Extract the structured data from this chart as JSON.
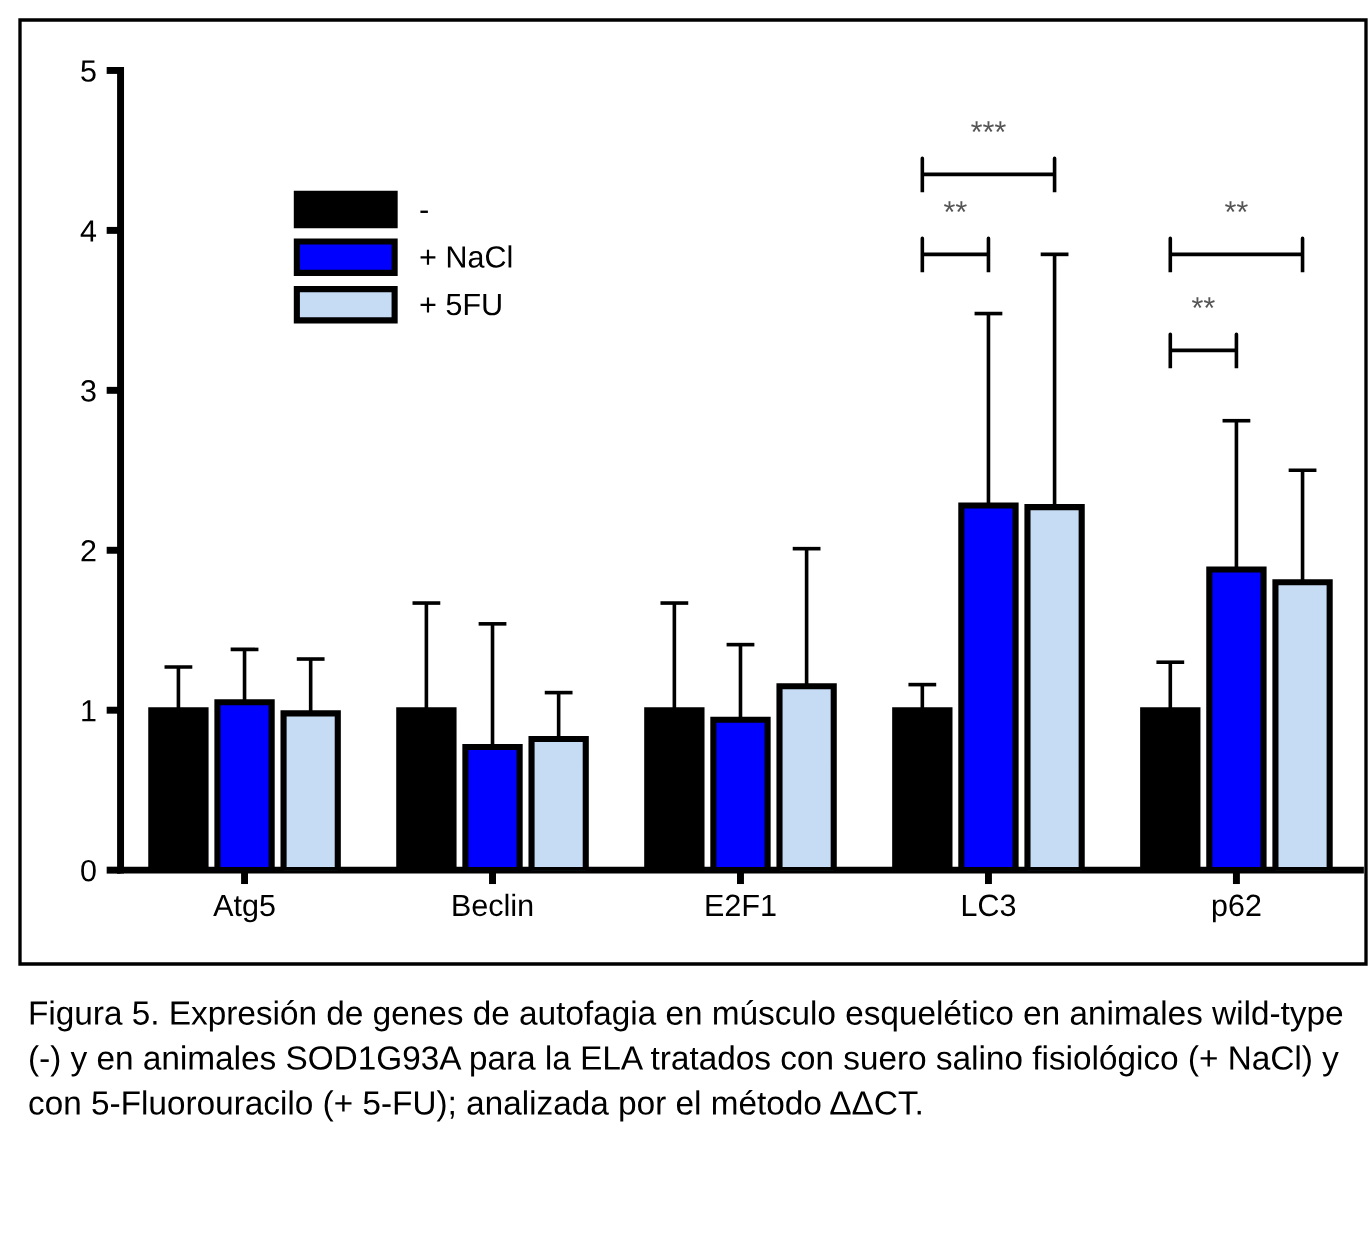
{
  "chart_data": {
    "type": "bar",
    "categories": [
      "Atg5",
      "Beclin",
      "E2F1",
      "LC3",
      "p62"
    ],
    "series": [
      {
        "name": "-",
        "color": "#000000",
        "values": [
          1.0,
          1.0,
          1.0,
          1.0,
          1.0
        ],
        "errors": [
          [
            1.0,
            1.27
          ],
          [
            1.0,
            1.67
          ],
          [
            1.0,
            1.67
          ],
          [
            1.0,
            1.16
          ],
          [
            1.0,
            1.3
          ]
        ]
      },
      {
        "name": "+ NaCl",
        "color": "#0000ff",
        "values": [
          1.05,
          0.77,
          0.94,
          2.28,
          1.88
        ],
        "errors": [
          [
            1.05,
            1.38
          ],
          [
            0.77,
            1.54
          ],
          [
            0.94,
            1.41
          ],
          [
            2.28,
            3.48
          ],
          [
            1.88,
            2.81
          ]
        ]
      },
      {
        "name": "+ 5FU",
        "color": "#c6dcf5",
        "values": [
          0.98,
          0.82,
          1.15,
          2.27,
          1.8
        ],
        "errors": [
          [
            0.98,
            1.32
          ],
          [
            0.82,
            1.11
          ],
          [
            1.15,
            2.01
          ],
          [
            2.27,
            3.85
          ],
          [
            1.8,
            2.5
          ]
        ]
      }
    ],
    "ylim": [
      0,
      5
    ],
    "yticks": [
      0,
      1,
      2,
      3,
      4,
      5
    ],
    "grid": false,
    "legend": "top left",
    "annotations": [
      "***",
      "**",
      "**",
      "**",
      "Figura 5. Expresión de genes de autofagia en músculo esquelético en animales wild-type (-) y en animales SOD1G93A para la ELA tratados con suero salino fisiológico (+ NaCl) y con 5-Fluorouracilo (+ 5-FU); analizada por el método ΔΔCT."
    ]
  }
}
